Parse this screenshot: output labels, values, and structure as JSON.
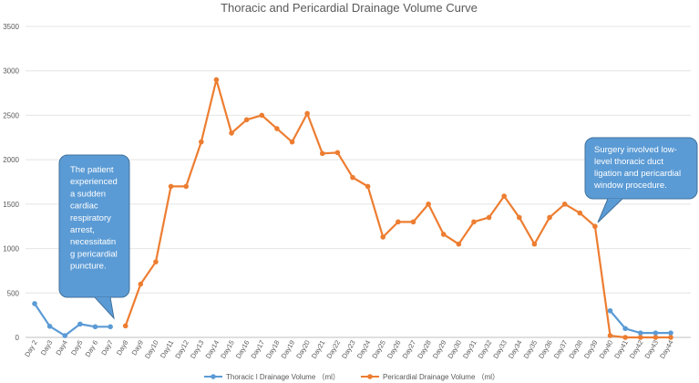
{
  "chart_data": {
    "type": "line",
    "title": "Thoracic and Pericardial Drainage Volume Curve",
    "xlabel": "",
    "ylabel": "",
    "ylim": [
      0,
      3500
    ],
    "yticks": [
      0,
      500,
      1000,
      1500,
      2000,
      2500,
      3000,
      3500
    ],
    "grid": true,
    "legend_position": "bottom",
    "categories": [
      "Day 2",
      "Day3",
      "Day4",
      "Day5",
      "Day 6",
      "Day7",
      "Day8",
      "Day9",
      "Day10",
      "Day11",
      "Day12",
      "Day13",
      "Day14",
      "Day15",
      "Day16",
      "Day17",
      "Day18",
      "Day19",
      "Day20",
      "Day21",
      "Day22",
      "Day23",
      "Day24",
      "Day25",
      "Day26",
      "Day27",
      "Day28",
      "Day29",
      "Day30",
      "Day31",
      "Day32",
      "Day33",
      "Day34",
      "Day35",
      "Day36",
      "Day37",
      "Day38",
      "Day39",
      "Day40",
      "Day41",
      "Day42",
      "Day43",
      "Day44"
    ],
    "series": [
      {
        "name": "Thoracic l Drainage Volume （ml）",
        "color": "#5b9bd5",
        "values": [
          380,
          125,
          20,
          150,
          120,
          120,
          null,
          null,
          null,
          null,
          null,
          null,
          null,
          null,
          null,
          null,
          null,
          null,
          null,
          null,
          null,
          null,
          null,
          null,
          null,
          null,
          null,
          null,
          null,
          null,
          null,
          null,
          null,
          null,
          null,
          null,
          null,
          null,
          300,
          100,
          50,
          50,
          50
        ]
      },
      {
        "name": "Pericardial Drainage Volume （ml）",
        "color": "#ed7d31",
        "values": [
          null,
          null,
          null,
          null,
          null,
          null,
          130,
          600,
          850,
          1700,
          1700,
          2200,
          2900,
          2300,
          2450,
          2500,
          2350,
          2200,
          2520,
          2070,
          2080,
          1800,
          1700,
          1130,
          1300,
          1300,
          1500,
          1160,
          1050,
          1300,
          1350,
          1590,
          1350,
          1050,
          1350,
          1500,
          1400,
          1250,
          20,
          0,
          0,
          0,
          0
        ]
      }
    ],
    "annotations": [
      {
        "text": [
          "The patient",
          "experienced",
          "a sudden",
          "cardiac",
          "respiratory",
          "arrest,",
          "necessitatin",
          "g pericardial",
          "puncture."
        ],
        "color": "#5b9bd5"
      },
      {
        "text": [
          "Surgery involved low-",
          "level thoracic duct",
          "ligation and pericardial",
          "window procedure."
        ],
        "color": "#5b9bd5"
      }
    ]
  }
}
